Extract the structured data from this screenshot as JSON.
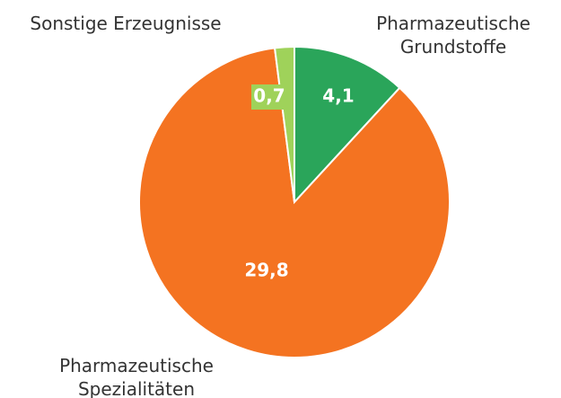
{
  "chart_data": {
    "type": "pie",
    "categories": [
      "Pharmazeutische\nGrundstoffe",
      "Pharmazeutische\nSpezialitäten",
      "Sonstige Erzeugnisse"
    ],
    "values": [
      4.1,
      29.8,
      0.7
    ],
    "value_labels": [
      "4,1",
      "29,8",
      "0,7"
    ],
    "colors": [
      "#2aa55a",
      "#f47321",
      "#9fd25a"
    ]
  }
}
